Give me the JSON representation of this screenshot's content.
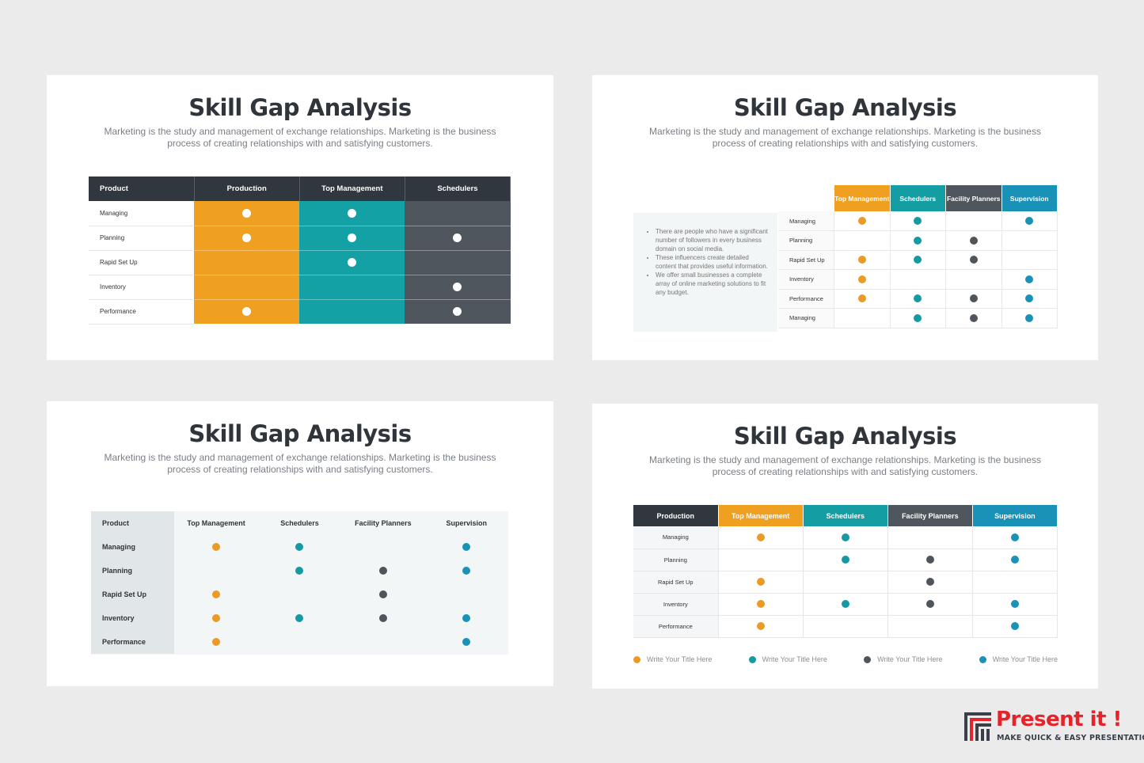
{
  "slide_title": "Skill Gap Analysis",
  "slide_subtitle": "Marketing is the study and management of exchange relationships. Marketing is the business process of creating relationships with and satisfying customers.",
  "colors": {
    "orange": "#eb9a26",
    "teal": "#159aa3",
    "dark": "#4f555a",
    "blue": "#1a92b7",
    "header_dark": "#30373e"
  },
  "slide1": {
    "headers": [
      "Product",
      "Production",
      "Top Management",
      "Schedulers"
    ],
    "rows": [
      {
        "label": "Managing",
        "cells": [
          true,
          true,
          false
        ]
      },
      {
        "label": "Planning",
        "cells": [
          true,
          true,
          true
        ]
      },
      {
        "label": "Rapid Set Up",
        "cells": [
          false,
          true,
          false
        ]
      },
      {
        "label": "Inventory",
        "cells": [
          false,
          false,
          true
        ]
      },
      {
        "label": "Performance",
        "cells": [
          true,
          false,
          true
        ]
      }
    ]
  },
  "slide2": {
    "bullets": [
      "There are people who have a significant number of followers in every business domain on social media.",
      "These influencers create detailed content that provides useful information.",
      "We offer small businesses a complete array of online marketing solutions to fit any budget."
    ],
    "headers": [
      "Top Management",
      "Schedulers",
      "Facility Planners",
      "Supervision"
    ],
    "header_colors": [
      "#f0a020",
      "#149ea4",
      "#50565d",
      "#1a92b7"
    ],
    "rows": [
      {
        "label": "Managing",
        "cells": [
          "o",
          "t",
          "",
          "b"
        ]
      },
      {
        "label": "Planning",
        "cells": [
          "",
          "t",
          "d",
          ""
        ]
      },
      {
        "label": "Rapid Set Up",
        "cells": [
          "o",
          "t",
          "d",
          ""
        ]
      },
      {
        "label": "Inventory",
        "cells": [
          "o",
          "",
          "",
          "b"
        ]
      },
      {
        "label": "Performance",
        "cells": [
          "o",
          "t",
          "d",
          "b"
        ]
      },
      {
        "label": "Managing",
        "cells": [
          "",
          "t",
          "d",
          "b"
        ]
      }
    ]
  },
  "slide3": {
    "headers": [
      "Product",
      "Top Management",
      "Schedulers",
      "Facility Planners",
      "Supervision"
    ],
    "rows": [
      {
        "label": "Managing",
        "cells": [
          "o",
          "t",
          "",
          "b"
        ]
      },
      {
        "label": "Planning",
        "cells": [
          "",
          "t",
          "d",
          "b"
        ]
      },
      {
        "label": "Rapid Set Up",
        "cells": [
          "o",
          "",
          "d",
          ""
        ]
      },
      {
        "label": "Inventory",
        "cells": [
          "o",
          "t",
          "d",
          "b"
        ]
      },
      {
        "label": "Performance",
        "cells": [
          "o",
          "",
          "",
          "b"
        ]
      }
    ]
  },
  "slide4": {
    "headers": [
      "Production",
      "Top Management",
      "Schedulers",
      "Facility Planners",
      "Supervision"
    ],
    "header_colors": [
      "#30373e",
      "#f0a020",
      "#149ea4",
      "#50565d",
      "#1a92b7"
    ],
    "rows": [
      {
        "label": "Managing",
        "cells": [
          "o",
          "t",
          "",
          "b"
        ]
      },
      {
        "label": "Planning",
        "cells": [
          "",
          "t",
          "d",
          "b"
        ]
      },
      {
        "label": "Rapid Set Up",
        "cells": [
          "o",
          "",
          "d",
          ""
        ]
      },
      {
        "label": "Inventory",
        "cells": [
          "o",
          "t",
          "d",
          "b"
        ]
      },
      {
        "label": "Performance",
        "cells": [
          "o",
          "",
          "",
          "b"
        ]
      }
    ],
    "legend": [
      {
        "label": "Write Your Title Here",
        "color": "o"
      },
      {
        "label": "Write Your Title Here",
        "color": "t"
      },
      {
        "label": "Write Your Title Here",
        "color": "d"
      },
      {
        "label": "Write Your Title Here",
        "color": "b"
      }
    ]
  },
  "logo": {
    "name": "Present it !",
    "tagline": "MAKE QUICK & EASY PRESENTATIONS"
  }
}
